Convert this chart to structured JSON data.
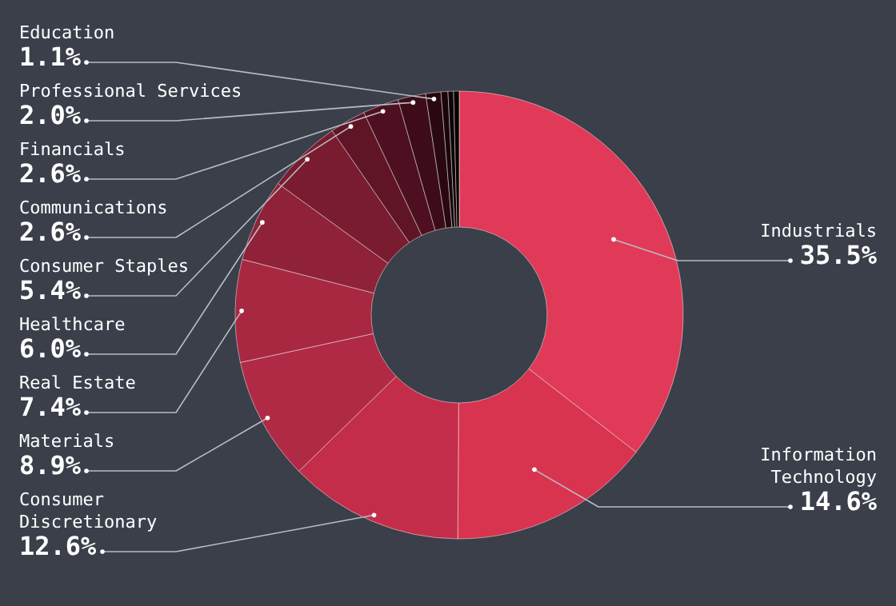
{
  "chart_data": {
    "type": "donut",
    "categories": [
      "Industrials",
      "Information Technology",
      "Consumer Discretionary",
      "Materials",
      "Real Estate",
      "Healthcare",
      "Consumer Staples",
      "Communications",
      "Financials",
      "Professional Services",
      "Education",
      null,
      null,
      null
    ],
    "values": [
      35.5,
      14.6,
      12.6,
      8.9,
      7.4,
      6.0,
      5.4,
      2.6,
      2.6,
      2.0,
      1.1,
      0.5,
      0.4,
      0.4
    ],
    "value_labels": [
      "35.5%",
      "14.6%",
      "12.6%",
      "8.9%",
      "7.4%",
      "6.0%",
      "5.4%",
      "2.6%",
      "2.6%",
      "2.0%",
      "1.1%",
      null,
      null,
      null
    ],
    "colors": [
      "#e03a58",
      "#d8334f",
      "#c42d4a",
      "#b02a45",
      "#a82741",
      "#8f2238",
      "#7a1c30",
      "#5f1526",
      "#4e1020",
      "#3d0c18",
      "#2a0810",
      "#1a0508",
      "#100304",
      "#050101"
    ]
  }
}
